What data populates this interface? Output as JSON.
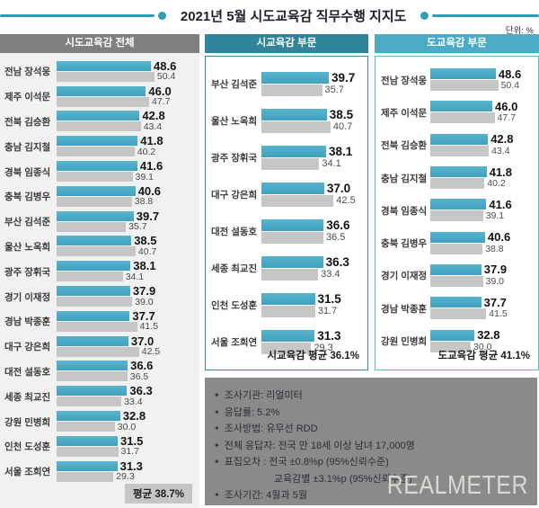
{
  "title": "2021년 5월 시도교육감 직무수행 지지도",
  "unit_label": "단위: %",
  "colors": {
    "accent_teal": "#31859B",
    "bar_teal": "#4BACC6",
    "bar_gray": "#C6C6C6",
    "header_all_bg": "#7F7F7F",
    "header_city_bg": "#31859B",
    "header_prov_bg": "#4BACC6",
    "left_panel_bg": "#F1F1F1",
    "info_box_bg": "#8A8A8A"
  },
  "chart_data": {
    "type": "bar",
    "orientation": "horizontal",
    "title": "2021년 5월 시도교육감 직무수행 지지도",
    "unit": "%",
    "panels": [
      {
        "id": "overall",
        "header": "시도교육감 전체",
        "average_label": "평균 38.7%",
        "rows": [
          {
            "label": "전남 장석웅",
            "main": "48.6",
            "sub": "50.4"
          },
          {
            "label": "제주 이석문",
            "main": "46.0",
            "sub": "47.7"
          },
          {
            "label": "전북 김승환",
            "main": "42.8",
            "sub": "43.4"
          },
          {
            "label": "충남 김지철",
            "main": "41.8",
            "sub": "40.2"
          },
          {
            "label": "경북 임종식",
            "main": "41.6",
            "sub": "39.1"
          },
          {
            "label": "충북 김병우",
            "main": "40.6",
            "sub": "38.8"
          },
          {
            "label": "부산 김석준",
            "main": "39.7",
            "sub": "35.7"
          },
          {
            "label": "울산 노옥희",
            "main": "38.5",
            "sub": "40.7"
          },
          {
            "label": "광주 장휘국",
            "main": "38.1",
            "sub": "34.1"
          },
          {
            "label": "경기 이재정",
            "main": "37.9",
            "sub": "39.0"
          },
          {
            "label": "경남 박종훈",
            "main": "37.7",
            "sub": "41.5"
          },
          {
            "label": "대구 강은희",
            "main": "37.0",
            "sub": "42.5"
          },
          {
            "label": "대전 설동호",
            "main": "36.6",
            "sub": "36.5"
          },
          {
            "label": "세종 최교진",
            "main": "36.3",
            "sub": "33.4"
          },
          {
            "label": "강원 민병희",
            "main": "32.8",
            "sub": "30.0"
          },
          {
            "label": "인천 도성훈",
            "main": "31.5",
            "sub": "31.7"
          },
          {
            "label": "서울 조희연",
            "main": "31.3",
            "sub": "29.3"
          }
        ]
      },
      {
        "id": "city",
        "header": "시교육감 부문",
        "average_label": "시교육감 평균 36.1%",
        "rows": [
          {
            "label": "부산 김석준",
            "main": "39.7",
            "sub": "35.7"
          },
          {
            "label": "울산 노옥희",
            "main": "38.5",
            "sub": "40.7"
          },
          {
            "label": "광주 장휘국",
            "main": "38.1",
            "sub": "34.1"
          },
          {
            "label": "대구 강은희",
            "main": "37.0",
            "sub": "42.5"
          },
          {
            "label": "대전 설동호",
            "main": "36.6",
            "sub": "36.5"
          },
          {
            "label": "세종 최교진",
            "main": "36.3",
            "sub": "33.4"
          },
          {
            "label": "인천 도성훈",
            "main": "31.5",
            "sub": "31.7"
          },
          {
            "label": "서울 조희연",
            "main": "31.3",
            "sub": "29.3"
          }
        ]
      },
      {
        "id": "province",
        "header": "도교육감 부문",
        "average_label": "도교육감 평균 41.1%",
        "rows": [
          {
            "label": "전남 장석웅",
            "main": "48.6",
            "sub": "50.4"
          },
          {
            "label": "제주 이석문",
            "main": "46.0",
            "sub": "47.7"
          },
          {
            "label": "전북 김승환",
            "main": "42.8",
            "sub": "43.4"
          },
          {
            "label": "충남 김지철",
            "main": "41.8",
            "sub": "40.2"
          },
          {
            "label": "경북 임종식",
            "main": "41.6",
            "sub": "39.1"
          },
          {
            "label": "충북 김병우",
            "main": "40.6",
            "sub": "38.8"
          },
          {
            "label": "경기 이재정",
            "main": "37.9",
            "sub": "39.0"
          },
          {
            "label": "경남 박종훈",
            "main": "37.7",
            "sub": "41.5"
          },
          {
            "label": "강원 민병희",
            "main": "32.8",
            "sub": "30.0"
          }
        ]
      }
    ]
  },
  "survey_info": {
    "bullet_char": "✦",
    "lines": [
      {
        "bullet": true,
        "text": "조사기관: 리얼미터"
      },
      {
        "bullet": true,
        "text": "응답률: 5.2%"
      },
      {
        "bullet": true,
        "text": "조사방법: 유무선 RDD"
      },
      {
        "bullet": true,
        "text": "전체 응답자: 전국 만 18세 이상 남녀 17,000명"
      },
      {
        "bullet": true,
        "text": "표집오차 : 전국 ±0.8%p (95%신뢰수준)"
      },
      {
        "bullet": false,
        "text": "교육감별 ±3.1%p (95%신뢰수준)"
      },
      {
        "bullet": true,
        "text": "조사기간: 4월과 5월"
      }
    ]
  },
  "logo_text": "REALMETER"
}
